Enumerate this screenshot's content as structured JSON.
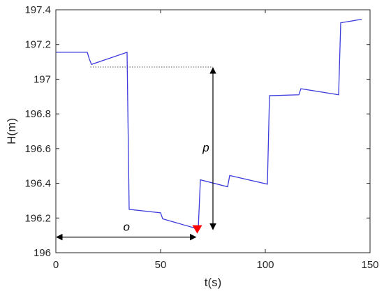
{
  "chart_data": {
    "type": "line",
    "title": "",
    "xlabel": "t(s)",
    "ylabel": "H(m)",
    "xlim": [
      0,
      150
    ],
    "ylim": [
      196,
      197.4
    ],
    "xticks": [
      "0",
      "50",
      "100",
      "150"
    ],
    "yticks": [
      "196",
      "196.2",
      "196.4",
      "196.6",
      "196.8",
      "197",
      "197.2",
      "197.4"
    ],
    "grid": false,
    "series": [
      {
        "color": "#3b3bdc",
        "x": [
          0,
          15,
          16,
          17,
          34,
          35,
          50,
          51,
          67,
          68,
          69,
          82,
          83,
          101,
          102,
          116,
          117,
          135,
          136,
          146
        ],
        "y": [
          197.155,
          197.155,
          197.115,
          197.085,
          197.155,
          196.25,
          196.23,
          196.195,
          196.14,
          196.14,
          196.42,
          196.38,
          196.445,
          196.395,
          196.905,
          196.91,
          196.945,
          196.91,
          197.325,
          197.345
        ]
      }
    ],
    "marker": {
      "x": 67.5,
      "y": 196.13,
      "color": "#ff0000",
      "shape": "down-triangle"
    },
    "annotations": {
      "o": {
        "label": "o",
        "x_from": 0,
        "x_to": 67.5,
        "y": 196.09
      },
      "p": {
        "label": "p",
        "x": 75,
        "y_from": 196.13,
        "y_to": 197.07
      },
      "reference_line": {
        "x_from": 16.5,
        "x_to": 75,
        "y": 197.07
      }
    }
  }
}
